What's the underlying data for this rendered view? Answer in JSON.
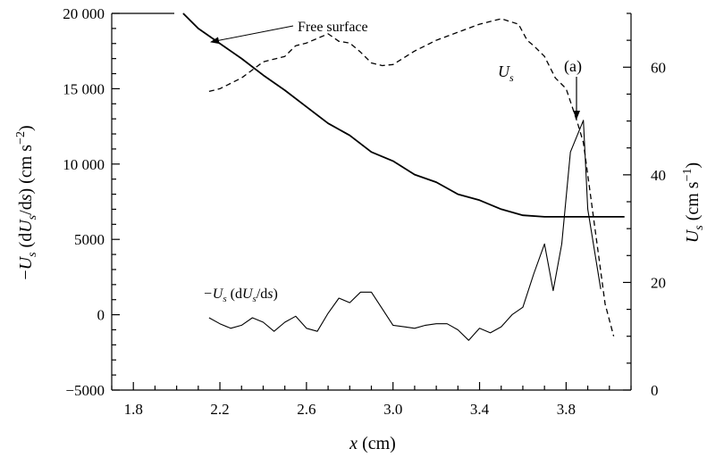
{
  "chart_data": {
    "type": "line",
    "xlabel": {
      "main": "x",
      "unit": " (cm)"
    },
    "ylabel_left": {
      "sign": "−",
      "a": "U",
      "b": "s",
      "c": " (d",
      "d": "U",
      "e": "s",
      "f": "/d",
      "g": "s",
      "h": ") (cm s",
      "i": "−2",
      "j": ")"
    },
    "ylabel_right": {
      "a": "U",
      "b": "s",
      "c": " (cm s",
      "d": "−1",
      "e": ")"
    },
    "xlim": [
      1.7,
      4.1
    ],
    "ylim_left": [
      -5000,
      20000
    ],
    "ylim_right": [
      0,
      70
    ],
    "x_ticks": [
      {
        "value": 1.8,
        "label": "1.8"
      },
      {
        "value": 2.2,
        "label": "2.2"
      },
      {
        "value": 2.6,
        "label": "2.6"
      },
      {
        "value": 3.0,
        "label": "3.0"
      },
      {
        "value": 3.4,
        "label": "3.4"
      },
      {
        "value": 3.8,
        "label": "3.8"
      }
    ],
    "y_ticks_left": [
      {
        "value": 20000,
        "label": "20 000"
      },
      {
        "value": 15000,
        "label": "15 000"
      },
      {
        "value": 10000,
        "label": "10 000"
      },
      {
        "value": 5000,
        "label": "5000"
      },
      {
        "value": 0,
        "label": "0"
      },
      {
        "value": -5000,
        "label": "−5000"
      }
    ],
    "y_ticks_right": [
      {
        "value": 60,
        "label": "60"
      },
      {
        "value": 40,
        "label": "40"
      },
      {
        "value": 20,
        "label": "20"
      },
      {
        "value": 0,
        "label": "0"
      }
    ],
    "annotations": {
      "free_surface": "Free surface",
      "us_label": {
        "a": "U",
        "b": "s"
      },
      "point_a": "(a)",
      "gradient_label": {
        "a": "−U",
        "b": "s",
        "c": " (d",
        "d": "U",
        "e": "s",
        "f": "/d",
        "g": "s",
        "h": ")"
      }
    },
    "series": [
      {
        "axis": "left",
        "style": "solid-thick",
        "x": [
          2.03,
          2.1,
          2.2,
          2.3,
          2.4,
          2.5,
          2.6,
          2.7,
          2.8,
          2.9,
          3.0,
          3.1,
          3.2,
          3.3,
          3.4,
          3.5,
          3.6,
          3.7,
          3.8,
          3.9,
          4.0,
          4.07
        ],
        "values": [
          20000,
          19000,
          18000,
          17000,
          15900,
          14900,
          13800,
          12700,
          11900,
          10800,
          10200,
          9300,
          8800,
          8000,
          7600,
          7000,
          6600,
          6500,
          6500,
          6500,
          6500,
          6500
        ]
      },
      {
        "axis": "left",
        "style": "solid-thin",
        "x": [
          2.15,
          2.2,
          2.25,
          2.3,
          2.35,
          2.4,
          2.45,
          2.5,
          2.55,
          2.6,
          2.65,
          2.7,
          2.75,
          2.8,
          2.85,
          2.9,
          2.95,
          3.0,
          3.05,
          3.1,
          3.15,
          3.2,
          3.25,
          3.3,
          3.35,
          3.4,
          3.45,
          3.5,
          3.55,
          3.6,
          3.65,
          3.7,
          3.74,
          3.78,
          3.82,
          3.88,
          3.9,
          3.96
        ],
        "values": [
          -200,
          -600,
          -900,
          -700,
          -200,
          -500,
          -1100,
          -500,
          -100,
          -900,
          -1100,
          100,
          1100,
          800,
          1500,
          1500,
          400,
          -700,
          -800,
          -900,
          -700,
          -600,
          -600,
          -1000,
          -1700,
          -900,
          -1200,
          -800,
          0,
          500,
          2700,
          4700,
          1600,
          4700,
          10800,
          12900,
          7000,
          1700
        ]
      },
      {
        "axis": "right",
        "style": "dashed",
        "x": [
          2.15,
          2.2,
          2.3,
          2.4,
          2.5,
          2.55,
          2.6,
          2.7,
          2.75,
          2.8,
          2.85,
          2.9,
          2.95,
          3.0,
          3.1,
          3.2,
          3.3,
          3.4,
          3.5,
          3.58,
          3.62,
          3.65,
          3.7,
          3.75,
          3.8,
          3.85,
          3.88,
          3.9,
          3.94,
          3.98,
          4.02
        ],
        "values": [
          55.5,
          56,
          58,
          61,
          62,
          64,
          64.5,
          66.2,
          64.8,
          64.5,
          62.8,
          60.8,
          60.3,
          60.5,
          63,
          65,
          66.5,
          68,
          69,
          68,
          65,
          64,
          62,
          58,
          56,
          50,
          46,
          40,
          28,
          16,
          10
        ]
      }
    ]
  }
}
